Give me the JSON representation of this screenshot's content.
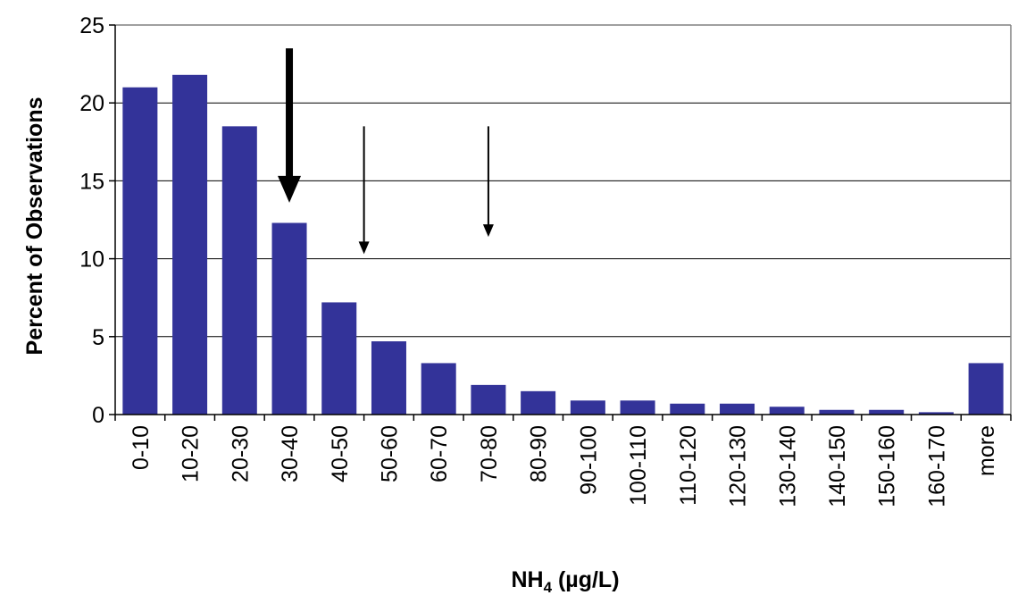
{
  "chart_data": {
    "type": "bar",
    "title": "",
    "xlabel_main": "NH",
    "xlabel_sub": "4",
    "xlabel_tail": " (µg/L)",
    "ylabel": "Percent of Observations",
    "categories": [
      "0-10",
      "10-20",
      "20-30",
      "30-40",
      "40-50",
      "50-60",
      "60-70",
      "70-80",
      "80-90",
      "90-100",
      "100-110",
      "110-120",
      "120-130",
      "130-140",
      "140-150",
      "150-160",
      "160-170",
      "more"
    ],
    "values": [
      21.0,
      21.8,
      18.5,
      12.3,
      7.2,
      4.7,
      3.3,
      1.9,
      1.5,
      0.9,
      0.9,
      0.7,
      0.7,
      0.5,
      0.3,
      0.3,
      0.15,
      3.3
    ],
    "ylim": [
      0,
      25
    ],
    "yticks": [
      0,
      5,
      10,
      15,
      20,
      25
    ],
    "grid": true,
    "legend": "none",
    "bar_color": "#333399",
    "annotations": [
      {
        "type": "arrow",
        "weight": "bold",
        "x_category_index": 3,
        "y_from": 23.5,
        "y_to": 13.6
      },
      {
        "type": "arrow",
        "weight": "thin",
        "x_category_index": 4.5,
        "y_from": 18.5,
        "y_to": 10.3
      },
      {
        "type": "arrow",
        "weight": "thin",
        "x_category_index": 7,
        "y_from": 18.5,
        "y_to": 11.4
      }
    ]
  }
}
